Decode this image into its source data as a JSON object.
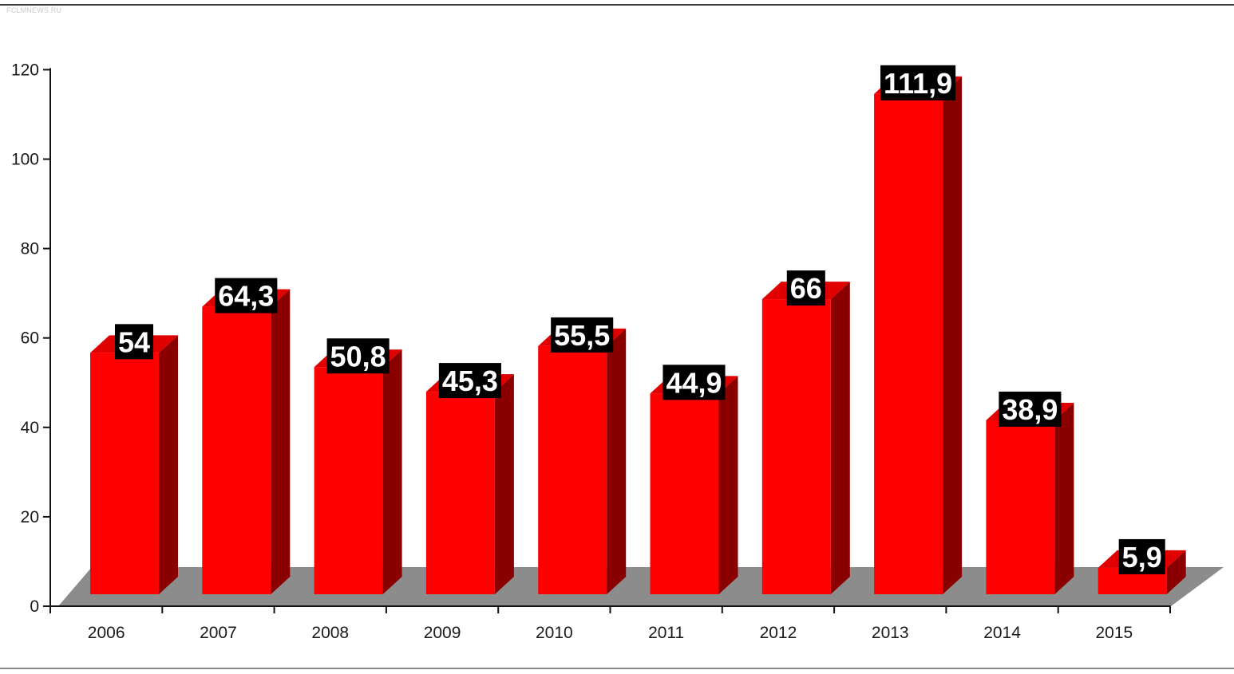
{
  "watermark": "FCLMNEWS.RU",
  "colors": {
    "bar_front": "#ff0000",
    "bar_top": "#e00000",
    "bar_side": "#8a0000",
    "floor": "#8c8c8c",
    "label_bg": "#000000",
    "label_text": "#ffffff",
    "axis": "#111111"
  },
  "chart_data": {
    "type": "bar",
    "title": "",
    "xlabel": "",
    "ylabel": "",
    "categories": [
      "2006",
      "2007",
      "2008",
      "2009",
      "2010",
      "2011",
      "2012",
      "2013",
      "2014",
      "2015"
    ],
    "values": [
      54,
      64.3,
      50.8,
      45.3,
      55.5,
      44.9,
      66,
      111.9,
      38.9,
      5.9
    ],
    "value_labels": [
      "54",
      "64,3",
      "50,8",
      "45,3",
      "55,5",
      "44,9",
      "66",
      "111,9",
      "38,9",
      "5,9"
    ],
    "ylim": [
      0,
      120
    ],
    "yticks": [
      0,
      20,
      40,
      60,
      80,
      100,
      120
    ],
    "grid": false,
    "legend": "none",
    "style": "3d"
  }
}
